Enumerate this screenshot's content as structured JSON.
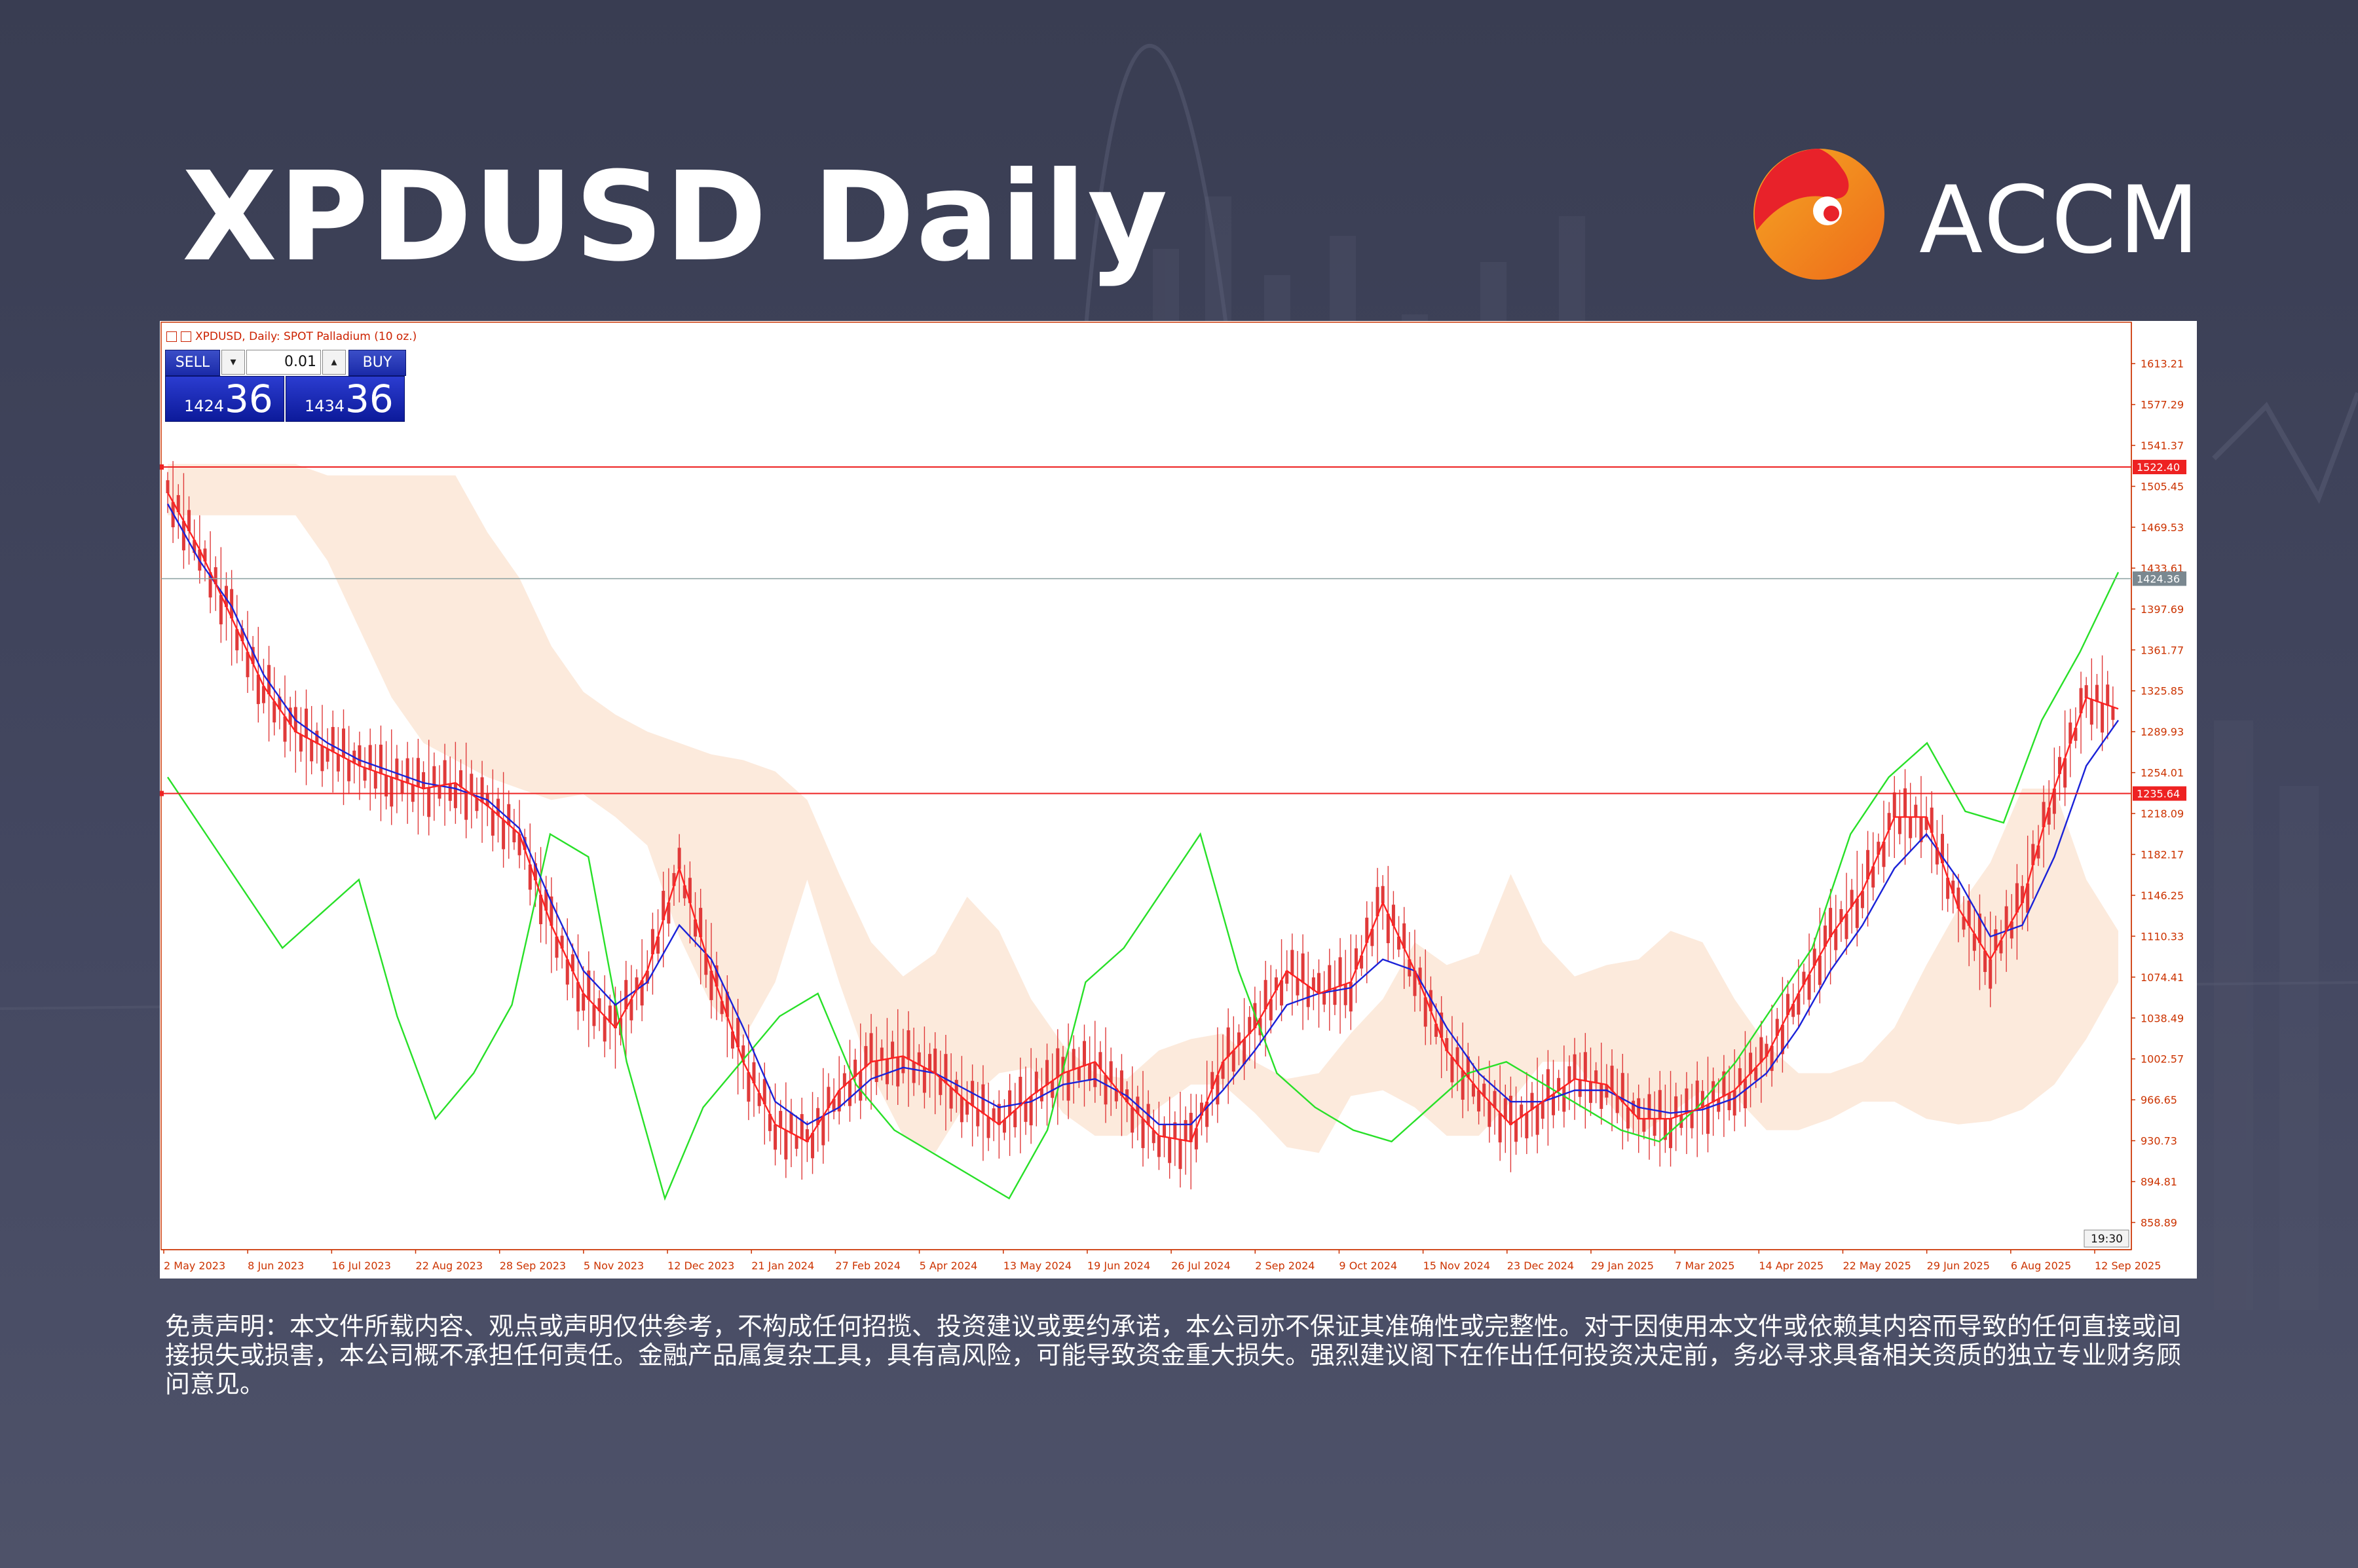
{
  "header": {
    "title": "XPDUSD Daily",
    "brand": "ACCM"
  },
  "chart_header": {
    "info": "XPDUSD, Daily:  SPOT Palladium (10 oz.)",
    "sell_label": "SELL",
    "buy_label": "BUY",
    "lot_value": "0.01",
    "sell_price_small": "1424",
    "sell_price_big": "36",
    "buy_price_small": "1434",
    "buy_price_big": "36",
    "time_label": "19:30"
  },
  "colors": {
    "candle": "#e03a3a",
    "kijun": "#1a22d8",
    "chikou": "#28e028",
    "tenkan": "#ff2020",
    "cloud_a": "#f0a060",
    "cloud_b": "#c8a8d8",
    "hline": "#ee2222",
    "bid_line": "#8aa0a0"
  },
  "chart_data": {
    "type": "line",
    "title": "XPDUSD Daily",
    "y_ticks": [
      "1613.21",
      "1577.29",
      "1541.37",
      "1505.45",
      "1469.53",
      "1433.61",
      "1397.69",
      "1361.77",
      "1325.85",
      "1289.93",
      "1254.01",
      "1218.09",
      "1182.17",
      "1146.25",
      "1110.33",
      "1074.41",
      "1038.49",
      "1002.57",
      "966.65",
      "930.73",
      "894.81",
      "858.89"
    ],
    "ylim": [
      835,
      1630
    ],
    "x_ticks": [
      "2 May 2023",
      "8 Jun 2023",
      "16 Jul 2023",
      "22 Aug 2023",
      "28 Sep 2023",
      "5 Nov 2023",
      "12 Dec 2023",
      "21 Jan 2024",
      "27 Feb 2024",
      "5 Apr 2024",
      "13 May 2024",
      "19 Jun 2024",
      "26 Jul 2024",
      "2 Sep 2024",
      "9 Oct 2024",
      "15 Nov 2024",
      "23 Dec 2024",
      "29 Jan 2025",
      "7 Mar 2025",
      "14 Apr 2025",
      "22 May 2025",
      "29 Jun 2025",
      "6 Aug 2025",
      "12 Sep 2025"
    ],
    "horizontal_lines": [
      {
        "label": "1522.40",
        "value": 1522.4
      },
      {
        "label": "1235.64",
        "value": 1235.64
      }
    ],
    "bid_line": {
      "label": "1424.36",
      "value": 1424.36
    },
    "series": [
      {
        "values": [
          1500,
          1450,
          1390,
          1330,
          1290,
          1275,
          1260,
          1250,
          1240,
          1245,
          1225,
          1200,
          1120,
          1060,
          1030,
          1080,
          1170,
          1080,
          1000,
          945,
          930,
          975,
          1000,
          1005,
          990,
          965,
          945,
          970,
          990,
          1000,
          965,
          935,
          930,
          1000,
          1030,
          1080,
          1060,
          1070,
          1140,
          1080,
          1010,
          975,
          945,
          965,
          985,
          980,
          950,
          950,
          960,
          975,
          1005,
          1060,
          1110,
          1150,
          1215,
          1215,
          1135,
          1090,
          1140,
          1240,
          1320,
          1310
        ]
      },
      {
        "values": [
          1490,
          1440,
          1400,
          1340,
          1300,
          1280,
          1265,
          1255,
          1245,
          1240,
          1230,
          1205,
          1140,
          1080,
          1050,
          1070,
          1120,
          1090,
          1030,
          965,
          945,
          960,
          985,
          995,
          990,
          975,
          960,
          965,
          980,
          985,
          970,
          945,
          945,
          975,
          1010,
          1050,
          1060,
          1065,
          1090,
          1080,
          1030,
          990,
          965,
          965,
          975,
          975,
          960,
          955,
          958,
          968,
          990,
          1030,
          1080,
          1120,
          1170,
          1200,
          1160,
          1110,
          1120,
          1180,
          1260,
          1300
        ]
      },
      {
        "values": [
          1250,
          1200,
          1150,
          1100,
          1130,
          1160,
          1040,
          950,
          990,
          1050,
          1200,
          1180,
          1000,
          880,
          960,
          1000,
          1040,
          1060,
          980,
          940,
          920,
          900,
          880,
          940,
          1070,
          1100,
          1150,
          1200,
          1080,
          990,
          960,
          940,
          930,
          960,
          990,
          1000,
          980,
          960,
          940,
          930,
          960,
          1000,
          1050,
          1100,
          1200,
          1250,
          1280,
          1220,
          1210,
          1300,
          1360,
          1430
        ]
      }
    ],
    "legend": false,
    "grid": false
  }
}
